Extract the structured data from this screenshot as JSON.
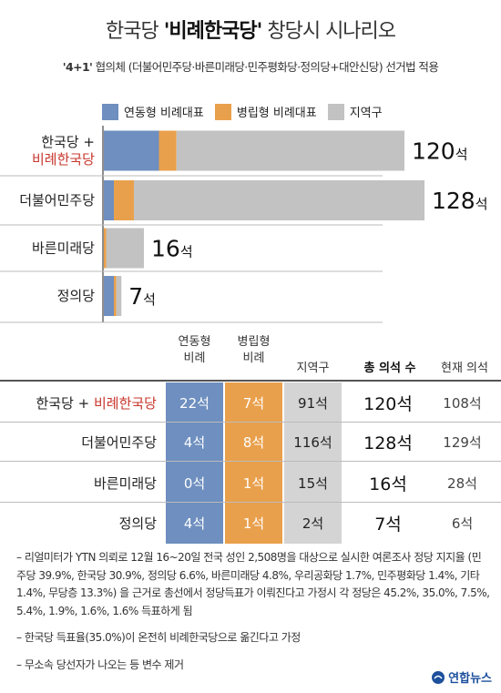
{
  "title_prefix": "한국당 ",
  "title_highlight": "'비례한국당'",
  "title_suffix": " 창당시 시나리오",
  "subtitle_highlight": "'4+1'",
  "subtitle_rest": " 협의체 (더불어민주당·바른미래당·민주평화당·정의당+대안신당) 선거법 적용",
  "legend": [
    {
      "label": "연동형 비례대표",
      "color": "#6e8fbf"
    },
    {
      "label": "병립형 비례대표",
      "color": "#e9a04c"
    },
    {
      "label": "지역구",
      "color": "#c2c2c2"
    }
  ],
  "chart_data": {
    "type": "bar",
    "orientation": "horizontal",
    "stacked": true,
    "categories": [
      "한국당+비례한국당",
      "더불어민주당",
      "바른미래당",
      "정의당"
    ],
    "category_lines": [
      [
        "한국당 +",
        "비례한국당"
      ],
      [
        "더불어민주당"
      ],
      [
        "바른미래당"
      ],
      [
        "정의당"
      ]
    ],
    "series": [
      {
        "name": "연동형 비례대표",
        "color": "#6e8fbf",
        "values": [
          22,
          4,
          0,
          4
        ]
      },
      {
        "name": "병립형 비례대표",
        "color": "#e9a04c",
        "values": [
          7,
          8,
          1,
          1
        ]
      },
      {
        "name": "지역구",
        "color": "#c2c2c2",
        "values": [
          91,
          116,
          15,
          2
        ]
      }
    ],
    "totals": [
      120,
      128,
      16,
      7
    ],
    "total_labels": [
      "120",
      "128",
      "16",
      "7"
    ],
    "unit": "석"
  },
  "table": {
    "headers": {
      "linked": [
        "연동형",
        "비례"
      ],
      "parallel": [
        "병립형",
        "비례"
      ],
      "district": "지역구",
      "total": "총 의석 수",
      "current": "현재 의석"
    },
    "rows": [
      {
        "party_prefix": "한국당 + ",
        "party_highlight": "비례한국당",
        "linked": "22석",
        "parallel": "7석",
        "district": "91석",
        "total": "120석",
        "current": "108석"
      },
      {
        "party_prefix": "더불어민주당",
        "party_highlight": "",
        "linked": "4석",
        "parallel": "8석",
        "district": "116석",
        "total": "128석",
        "current": "129석"
      },
      {
        "party_prefix": "바른미래당",
        "party_highlight": "",
        "linked": "0석",
        "parallel": "1석",
        "district": "15석",
        "total": "16석",
        "current": "28석"
      },
      {
        "party_prefix": "정의당",
        "party_highlight": "",
        "linked": "4석",
        "parallel": "1석",
        "district": "2석",
        "total": "7석",
        "current": "6석"
      }
    ]
  },
  "notes": [
    "– 리얼미터가 YTN 의뢰로 12월 16~20일 전국 성인 2,508명을 대상으로 실시한 여론조사 정당 지지율 (민주당 39.9%, 한국당 30.9%, 정의당 6.6%, 바른미래당 4.8%, 우리공화당 1.7%, 민주평화당 1.4%, 기타 1.4%, 무당층 13.3%) 을 근거로 총선에서 정당득표가 이뤄진다고 가정시 각 정당은 45.2%, 35.0%, 7.5%, 5.4%, 1.9%, 1.6%, 1.6% 득표하게 됨",
    "– 한국당 득표율(35.0%)이 온전히 비례한국당으로 옮긴다고 가정",
    "– 무소속 당선자가 나오는 등 변수 제거"
  ],
  "source": "연합뉴스",
  "colors": {
    "accent_red": "#c8372d",
    "blue": "#6e8fbf",
    "orange": "#e9a04c",
    "gray": "#c2c2c2"
  }
}
